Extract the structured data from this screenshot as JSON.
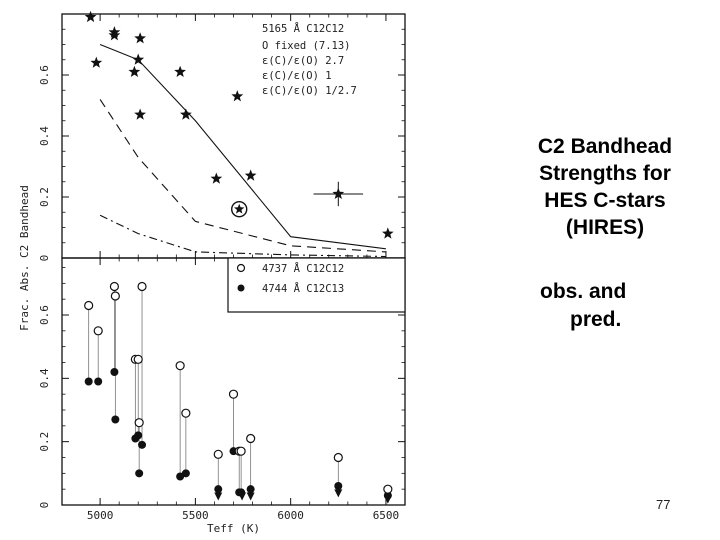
{
  "slide": {
    "title_lines": [
      "C2 Bandhead",
      "Strengths for",
      "HES C-stars",
      "(HIRES)"
    ],
    "subtitle_lines": [
      "obs. and",
      "pred."
    ],
    "page_number": "77"
  },
  "chart_data": [
    {
      "type": "scatter",
      "panel": "top",
      "xlabel": "Teff (K)",
      "ylabel": "Frac. Abs. C2 Bandhead",
      "xlim": [
        4800,
        6600
      ],
      "ylim": [
        0,
        0.8
      ],
      "x_ticks": [
        "5000",
        "5500",
        "6000",
        "6500"
      ],
      "x_tick_values": [
        5000,
        5500,
        6000,
        6500
      ],
      "y_ticks": [
        "0",
        "0.2",
        "0.4",
        "0.6"
      ],
      "y_tick_values": [
        0,
        0.2,
        0.4,
        0.6
      ],
      "legend": {
        "title": "5165 Å C12C12",
        "lines": [
          "O fixed (7.13)",
          "ε(C)/ε(O) 2.7",
          "ε(C)/ε(O) 1",
          "ε(C)/ε(O) 1/2.7"
        ]
      },
      "series": [
        {
          "name": "observed",
          "marker": "star",
          "x": [
            4950,
            4980,
            5075,
            5075,
            5180,
            5200,
            5210,
            5210,
            5420,
            5450,
            5610,
            5720,
            5790,
            6250,
            6510
          ],
          "y": [
            0.79,
            0.64,
            0.74,
            0.73,
            0.61,
            0.65,
            0.72,
            0.47,
            0.61,
            0.47,
            0.26,
            0.53,
            0.27,
            0.21,
            0.08
          ]
        },
        {
          "name": "sun",
          "marker": "circled-star",
          "x": [
            5730
          ],
          "y": [
            0.16
          ]
        },
        {
          "name": "ε(C)/ε(O) 2.7",
          "style": "solid",
          "x": [
            5000,
            5200,
            5500,
            6000,
            6500
          ],
          "y": [
            0.7,
            0.65,
            0.45,
            0.07,
            0.03
          ]
        },
        {
          "name": "ε(C)/ε(O) 1",
          "style": "dashed",
          "x": [
            5000,
            5200,
            5500,
            6000,
            6500
          ],
          "y": [
            0.52,
            0.33,
            0.12,
            0.04,
            0.02
          ]
        },
        {
          "name": "ε(C)/ε(O) 1/2.7",
          "style": "dashdot",
          "x": [
            5000,
            5200,
            5500,
            6000,
            6500
          ],
          "y": [
            0.14,
            0.08,
            0.02,
            0.01,
            0.005
          ]
        }
      ],
      "error_bar": {
        "x": 6250,
        "y": 0.21,
        "dx": 130,
        "dy": 0.04
      }
    },
    {
      "type": "scatter",
      "panel": "bottom",
      "xlabel": "Teff (K)",
      "ylabel": "Frac. Abs. C2 Bandhead",
      "xlim": [
        4800,
        6600
      ],
      "ylim": [
        0,
        0.78
      ],
      "x_ticks": [
        "5000",
        "5500",
        "6000",
        "6500"
      ],
      "x_tick_values": [
        5000,
        5500,
        6000,
        6500
      ],
      "y_ticks": [
        "0",
        "0.2",
        "0.4",
        "0.6"
      ],
      "y_tick_values": [
        0,
        0.2,
        0.4,
        0.6
      ],
      "legend": {
        "entries": [
          {
            "marker": "open-circle",
            "label": "4737 Å C12C12"
          },
          {
            "marker": "filled-circle",
            "label": "4744 Å C12C13"
          }
        ]
      },
      "pairs": [
        {
          "x": 4940,
          "open": 0.63,
          "filled": 0.39
        },
        {
          "x": 4990,
          "open": 0.55,
          "filled": 0.39
        },
        {
          "x": 5075,
          "open": 0.69,
          "filled": 0.42
        },
        {
          "x": 5080,
          "open": 0.66,
          "filled": 0.27
        },
        {
          "x": 5185,
          "open": 0.46,
          "filled": 0.21
        },
        {
          "x": 5200,
          "open": 0.46,
          "filled": 0.22
        },
        {
          "x": 5205,
          "open": 0.26,
          "filled": 0.1
        },
        {
          "x": 5220,
          "open": 0.69,
          "filled": 0.19
        },
        {
          "x": 5420,
          "open": 0.44,
          "filled": 0.09
        },
        {
          "x": 5450,
          "open": 0.29,
          "filled": 0.1
        },
        {
          "x": 5620,
          "open": 0.16,
          "filled": 0.05
        },
        {
          "x": 5700,
          "open": 0.35,
          "filled": 0.17
        },
        {
          "x": 5730,
          "open": 0.17,
          "filled": 0.04
        },
        {
          "x": 5740,
          "open": 0.17,
          "filled": 0.04
        },
        {
          "x": 5790,
          "open": 0.21,
          "filled": 0.05
        },
        {
          "x": 6250,
          "open": 0.15,
          "filled": 0.06
        },
        {
          "x": 6510,
          "open": 0.05,
          "filled": 0.03
        }
      ],
      "upper_limits": [
        {
          "x": 5620,
          "y": 0.03
        },
        {
          "x": 5745,
          "y": 0.03
        },
        {
          "x": 5790,
          "y": 0.03
        },
        {
          "x": 6250,
          "y": 0.04
        },
        {
          "x": 6510,
          "y": 0.02
        }
      ]
    }
  ]
}
